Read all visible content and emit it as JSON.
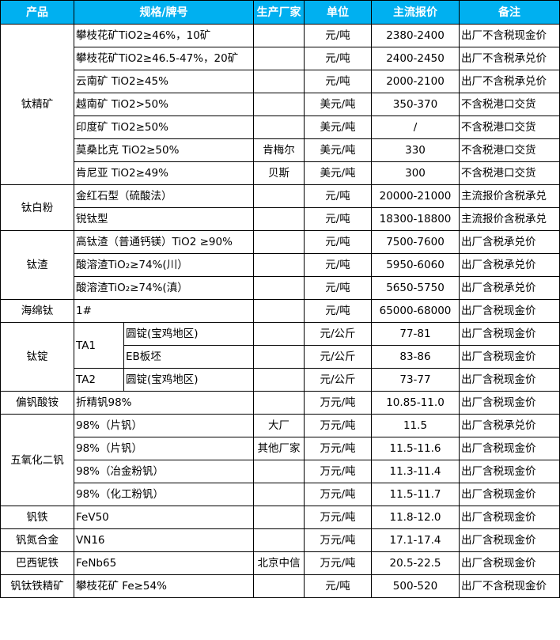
{
  "header": {
    "product": "产品",
    "spec": "规格/牌号",
    "maker": "生产厂家",
    "unit": "单位",
    "price": "主流报价",
    "note": "备注"
  },
  "header_color": "#00b0f0",
  "groups": [
    {
      "product": "钛精矿",
      "rows": [
        {
          "spec": "攀枝花矿TiO2≥46%，10矿",
          "maker": "",
          "unit": "元/吨",
          "price": "2380-2400",
          "note": "出厂不含税现金价"
        },
        {
          "spec": "攀枝花矿TiO2≥46.5-47%，20矿",
          "maker": "",
          "unit": "元/吨",
          "price": "2400-2450",
          "note": "出厂不含税承兑价"
        },
        {
          "spec": "云南矿 TiO2≥45%",
          "maker": "",
          "unit": "元/吨",
          "price": "2000-2100",
          "note": "出厂不含税承兑价"
        },
        {
          "spec": "越南矿 TiO2>50%",
          "maker": "",
          "unit": "美元/吨",
          "price": "350-370",
          "note": "不含税港口交货"
        },
        {
          "spec": "印度矿 TiO2≥50%",
          "maker": "",
          "unit": "美元/吨",
          "price": "/",
          "note": "不含税港口交货"
        },
        {
          "spec": "莫桑比克 TiO2≥50%",
          "maker": "肯梅尔",
          "unit": "美元/吨",
          "price": "330",
          "note": "不含税港口交货"
        },
        {
          "spec": "肯尼亚 TiO2≥49%",
          "maker": "贝斯",
          "unit": "美元/吨",
          "price": "300",
          "note": "不含税港口交货"
        }
      ]
    },
    {
      "product": "钛白粉",
      "rows": [
        {
          "spec": "金红石型（硫酸法）",
          "maker": "",
          "unit": "元/吨",
          "price": "20000-21000",
          "note": "主流报价含税承兑"
        },
        {
          "spec": "锐钛型",
          "maker": "",
          "unit": "元/吨",
          "price": "18300-18800",
          "note": "主流报价含税承兑"
        }
      ]
    },
    {
      "product": "钛渣",
      "rows": [
        {
          "spec": "高钛渣（普通钙镁）TiO2 ≥90%",
          "maker": "",
          "unit": "元/吨",
          "price": "7500-7600",
          "note": "出厂含税承兑价"
        },
        {
          "spec": "酸溶渣TiO₂≥74%(川）",
          "maker": "",
          "unit": "元/吨",
          "price": "5950-6060",
          "note": "出厂含税承兑价"
        },
        {
          "spec": "酸溶渣TiO₂≥74%(滇）",
          "maker": "",
          "unit": "元/吨",
          "price": "5650-5750",
          "note": "出厂含税承兑价"
        }
      ]
    },
    {
      "product": "海绵钛",
      "rows": [
        {
          "spec": "1#",
          "maker": "",
          "unit": "元/吨",
          "price": "65000-68000",
          "note": "出厂含税现金价"
        }
      ]
    },
    {
      "product": "钛锭",
      "rows": [
        {
          "grade": "TA1",
          "form": "圆锭(宝鸡地区)",
          "maker": "",
          "unit": "元/公斤",
          "price": "77-81",
          "note": "出厂含税现金价"
        },
        {
          "form": "EB板坯",
          "maker": "",
          "unit": "元/公斤",
          "price": "83-86",
          "note": "出厂含税现金价"
        },
        {
          "grade": "TA2",
          "form": "圆锭(宝鸡地区)",
          "maker": "",
          "unit": "元/公斤",
          "price": "73-77",
          "note": "出厂含税现金价"
        }
      ]
    },
    {
      "product": "偏钒酸铵",
      "rows": [
        {
          "spec": "折精钒98%",
          "maker": "",
          "unit": "万元/吨",
          "price": "10.85-11.0",
          "note": "出厂含税现金价"
        }
      ]
    },
    {
      "product": "五氧化二钒",
      "rows": [
        {
          "spec": "98%（片钒）",
          "maker": "大厂",
          "unit": "万元/吨",
          "price": "11.5",
          "note": "出厂含税承兑价"
        },
        {
          "spec": "98%（片钒）",
          "maker": "其他厂家",
          "unit": "万元/吨",
          "price": "11.5-11.6",
          "note": "出厂含税现金价"
        },
        {
          "spec": "98%（冶金粉钒）",
          "maker": "",
          "unit": "万元/吨",
          "price": "11.3-11.4",
          "note": "出厂含税现金价"
        },
        {
          "spec": "98%（化工粉钒）",
          "maker": "",
          "unit": "万元/吨",
          "price": "11.5-11.7",
          "note": "出厂含税现金价"
        }
      ]
    },
    {
      "product": "钒铁",
      "rows": [
        {
          "spec": "FeV50",
          "maker": "",
          "unit": "万元/吨",
          "price": "11.8-12.0",
          "note": "出厂含税现金价"
        }
      ]
    },
    {
      "product": "钒氮合金",
      "rows": [
        {
          "spec": "VN16",
          "maker": "",
          "unit": "万元/吨",
          "price": "17.1-17.4",
          "note": "出厂含税现金价"
        }
      ]
    },
    {
      "product": "巴西铌铁",
      "rows": [
        {
          "spec": "FeNb65",
          "maker": "北京中信",
          "unit": "万元/吨",
          "price": "20.5-22.5",
          "note": "出厂含税现金价"
        }
      ]
    },
    {
      "product": "钒钛铁精矿",
      "rows": [
        {
          "spec": "攀枝花矿 Fe≥54%",
          "maker": "",
          "unit": "元/吨",
          "price": "500-520",
          "note": "出厂不含税现金价"
        }
      ]
    }
  ]
}
